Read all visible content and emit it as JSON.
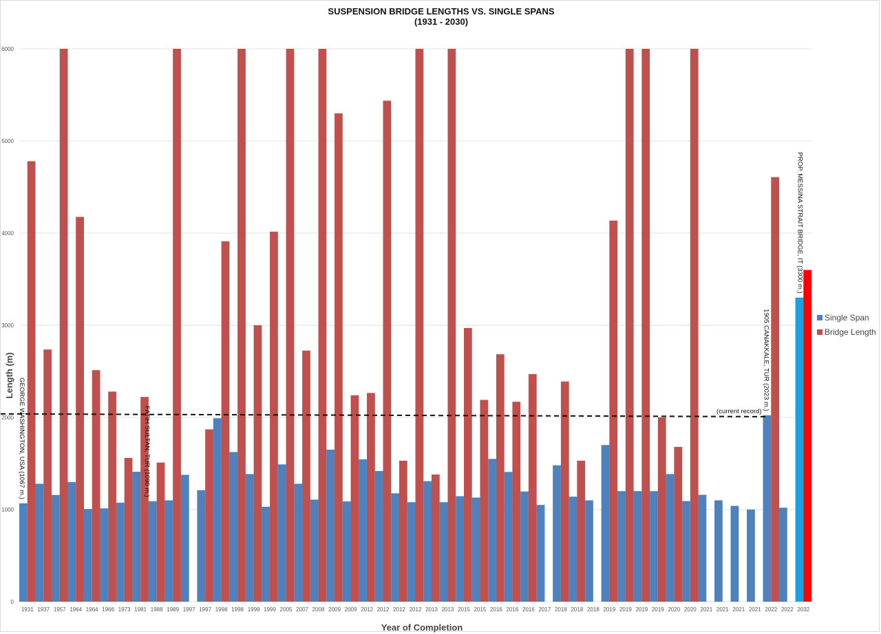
{
  "chart_data": {
    "type": "bar",
    "title": "SUSPENSION BRIDGE LENGTHS VS. SINGLE SPANS",
    "subtitle": "(1931 - 2030)",
    "xlabel": "Year of Completion",
    "ylabel": "Length (m)",
    "ylim": [
      0,
      6000
    ],
    "yticks": [
      0,
      1000,
      2000,
      3000,
      4000,
      5000,
      6000
    ],
    "grid": true,
    "legend_position": "right",
    "colors": {
      "single_span": "#4f81bd",
      "bridge_length": "#c0504d",
      "proposed_span": "#1ba1e2",
      "proposed_length": "#ff0000",
      "grid": "#e2e2e2"
    },
    "categories": [
      "1931",
      "1937",
      "1957",
      "1964",
      "1964",
      "1966",
      "1973",
      "1981",
      "1988",
      "1989",
      "1997",
      "1997",
      "1998",
      "1998",
      "1999",
      "1999",
      "2005",
      "2007",
      "2008",
      "2009",
      "2009",
      "2012",
      "2012",
      "2012",
      "2012",
      "2013",
      "2013",
      "2015",
      "2015",
      "2016",
      "2016",
      "2016",
      "2017",
      "2018",
      "2018",
      "2018",
      "2019",
      "2019",
      "2019",
      "2019",
      "2020",
      "2020",
      "2021",
      "2021",
      "2021",
      "2021",
      "2022",
      "2022",
      "2032"
    ],
    "series": [
      {
        "name": "Single Span",
        "values": [
          1067,
          1280,
          1158,
          1298,
          1006,
          1013,
          1074,
          1410,
          1090,
          1100,
          1377,
          1210,
          1991,
          1624,
          1385,
          1030,
          1490,
          1280,
          1108,
          1650,
          1088,
          1545,
          1418,
          1176,
          1080,
          1308,
          1080,
          1145,
          1130,
          1550,
          1408,
          1196,
          1050,
          1480,
          1140,
          1100,
          1700,
          1200,
          1200,
          1200,
          1385,
          1092,
          1160,
          1100,
          1040,
          1000,
          2023,
          1020,
          3300
        ]
      },
      {
        "name": "Bridge Length",
        "values": [
          4780,
          2737,
          6000,
          4176,
          2513,
          2280,
          1560,
          2222,
          1510,
          6000,
          null,
          1870,
          3911,
          6000,
          3000,
          4016,
          6000,
          2725,
          6000,
          5300,
          2240,
          2265,
          5437,
          1530,
          6000,
          1380,
          6000,
          2970,
          2190,
          2685,
          2170,
          2470,
          null,
          2390,
          1530,
          null,
          4136,
          6000,
          6000,
          2000,
          1680,
          6000,
          null,
          null,
          null,
          null,
          4608,
          null,
          3600
        ]
      }
    ],
    "proposed_index": 48,
    "record_line": {
      "value": 2023,
      "label": "(current record)"
    },
    "annotations": [
      {
        "text": "GEORGE WASHINGTON, USA (1067 m.)",
        "index": 0
      },
      {
        "text": "FATIH SULTAN, TUR (1090 m.)",
        "index": 8
      },
      {
        "text": "1905 CANAKKALE, TUR (2023 m.)",
        "index": 46
      },
      {
        "text": "PROP. MESSINA STRAIT BRIDGE, IT (3300 m.)",
        "index": 48
      }
    ],
    "legend": [
      "Single Span",
      "Bridge Length"
    ]
  }
}
